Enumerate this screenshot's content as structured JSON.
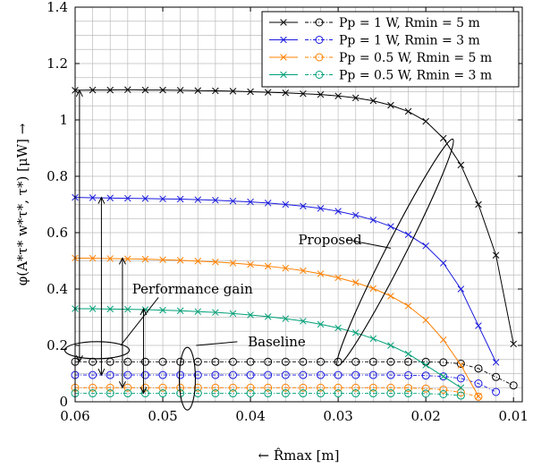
{
  "chart_data": {
    "type": "line",
    "xlabel": "← R̂max [m]",
    "ylabel": "φ(A*τ* w*τ*, τ*) [μW] →",
    "xlim": [
      0.06,
      0.009
    ],
    "ylim": [
      0,
      1.4
    ],
    "x_reversed": true,
    "grid": true,
    "xticks": [
      "0.06",
      "0.05",
      "0.04",
      "0.03",
      "0.02",
      "0.01"
    ],
    "yticks": [
      "0",
      "0.2",
      "0.4",
      "0.6",
      "0.8",
      "1",
      "1.2",
      "1.4"
    ],
    "legend_position": "top-right",
    "series": [
      {
        "name": "Pp = 1 W, Rmin = 5 m",
        "legend_text": "Pp = 1 W, Rmin = 5 m",
        "color": "#000000",
        "proposed": [
          [
            0.06,
            1.105
          ],
          [
            0.058,
            1.106
          ],
          [
            0.056,
            1.106
          ],
          [
            0.054,
            1.107
          ],
          [
            0.052,
            1.106
          ],
          [
            0.05,
            1.106
          ],
          [
            0.048,
            1.105
          ],
          [
            0.046,
            1.104
          ],
          [
            0.044,
            1.103
          ],
          [
            0.042,
            1.102
          ],
          [
            0.04,
            1.1
          ],
          [
            0.038,
            1.098
          ],
          [
            0.036,
            1.096
          ],
          [
            0.034,
            1.093
          ],
          [
            0.032,
            1.09
          ],
          [
            0.03,
            1.085
          ],
          [
            0.028,
            1.078
          ],
          [
            0.026,
            1.068
          ],
          [
            0.024,
            1.052
          ],
          [
            0.022,
            1.03
          ],
          [
            0.02,
            0.995
          ],
          [
            0.018,
            0.935
          ],
          [
            0.016,
            0.84
          ],
          [
            0.014,
            0.7
          ],
          [
            0.012,
            0.52
          ],
          [
            0.01,
            0.205
          ]
        ],
        "baseline": [
          [
            0.06,
            0.142
          ],
          [
            0.058,
            0.142
          ],
          [
            0.056,
            0.142
          ],
          [
            0.054,
            0.142
          ],
          [
            0.052,
            0.142
          ],
          [
            0.05,
            0.142
          ],
          [
            0.048,
            0.142
          ],
          [
            0.046,
            0.142
          ],
          [
            0.044,
            0.142
          ],
          [
            0.042,
            0.142
          ],
          [
            0.04,
            0.142
          ],
          [
            0.038,
            0.142
          ],
          [
            0.036,
            0.142
          ],
          [
            0.034,
            0.142
          ],
          [
            0.032,
            0.142
          ],
          [
            0.03,
            0.142
          ],
          [
            0.028,
            0.142
          ],
          [
            0.026,
            0.142
          ],
          [
            0.024,
            0.142
          ],
          [
            0.022,
            0.142
          ],
          [
            0.02,
            0.142
          ],
          [
            0.018,
            0.14
          ],
          [
            0.016,
            0.135
          ],
          [
            0.014,
            0.118
          ],
          [
            0.012,
            0.088
          ],
          [
            0.01,
            0.058
          ]
        ]
      },
      {
        "name": "Pp = 1 W, Rmin = 3 m",
        "legend_text": "Pp = 1 W, Rmin = 3 m",
        "color": "#1a1adf",
        "proposed": [
          [
            0.06,
            0.725
          ],
          [
            0.058,
            0.724
          ],
          [
            0.056,
            0.723
          ],
          [
            0.054,
            0.722
          ],
          [
            0.052,
            0.721
          ],
          [
            0.05,
            0.72
          ],
          [
            0.048,
            0.719
          ],
          [
            0.046,
            0.717
          ],
          [
            0.044,
            0.715
          ],
          [
            0.042,
            0.712
          ],
          [
            0.04,
            0.709
          ],
          [
            0.038,
            0.705
          ],
          [
            0.036,
            0.7
          ],
          [
            0.034,
            0.694
          ],
          [
            0.032,
            0.686
          ],
          [
            0.03,
            0.676
          ],
          [
            0.028,
            0.662
          ],
          [
            0.026,
            0.645
          ],
          [
            0.024,
            0.622
          ],
          [
            0.022,
            0.593
          ],
          [
            0.02,
            0.553
          ],
          [
            0.018,
            0.492
          ],
          [
            0.016,
            0.4
          ],
          [
            0.014,
            0.27
          ],
          [
            0.012,
            0.14
          ]
        ],
        "baseline": [
          [
            0.06,
            0.095
          ],
          [
            0.058,
            0.095
          ],
          [
            0.056,
            0.095
          ],
          [
            0.054,
            0.095
          ],
          [
            0.052,
            0.095
          ],
          [
            0.05,
            0.095
          ],
          [
            0.048,
            0.095
          ],
          [
            0.046,
            0.095
          ],
          [
            0.044,
            0.095
          ],
          [
            0.042,
            0.095
          ],
          [
            0.04,
            0.095
          ],
          [
            0.038,
            0.095
          ],
          [
            0.036,
            0.095
          ],
          [
            0.034,
            0.095
          ],
          [
            0.032,
            0.095
          ],
          [
            0.03,
            0.095
          ],
          [
            0.028,
            0.095
          ],
          [
            0.026,
            0.095
          ],
          [
            0.024,
            0.095
          ],
          [
            0.022,
            0.094
          ],
          [
            0.02,
            0.093
          ],
          [
            0.018,
            0.09
          ],
          [
            0.016,
            0.083
          ],
          [
            0.014,
            0.065
          ],
          [
            0.012,
            0.035
          ]
        ]
      },
      {
        "name": "Pp = 0.5 W, Rmin = 5 m",
        "legend_text": "Pp = 0.5 W, Rmin = 5 m",
        "color": "#ff8000",
        "proposed": [
          [
            0.06,
            0.51
          ],
          [
            0.058,
            0.509
          ],
          [
            0.056,
            0.508
          ],
          [
            0.054,
            0.507
          ],
          [
            0.052,
            0.506
          ],
          [
            0.05,
            0.504
          ],
          [
            0.048,
            0.502
          ],
          [
            0.046,
            0.499
          ],
          [
            0.044,
            0.496
          ],
          [
            0.042,
            0.492
          ],
          [
            0.04,
            0.487
          ],
          [
            0.038,
            0.481
          ],
          [
            0.036,
            0.474
          ],
          [
            0.034,
            0.465
          ],
          [
            0.032,
            0.454
          ],
          [
            0.03,
            0.44
          ],
          [
            0.028,
            0.423
          ],
          [
            0.026,
            0.402
          ],
          [
            0.024,
            0.375
          ],
          [
            0.022,
            0.34
          ],
          [
            0.02,
            0.29
          ],
          [
            0.018,
            0.22
          ],
          [
            0.016,
            0.13
          ],
          [
            0.014,
            0.02
          ]
        ],
        "baseline": [
          [
            0.06,
            0.05
          ],
          [
            0.058,
            0.05
          ],
          [
            0.056,
            0.05
          ],
          [
            0.054,
            0.05
          ],
          [
            0.052,
            0.05
          ],
          [
            0.05,
            0.05
          ],
          [
            0.048,
            0.05
          ],
          [
            0.046,
            0.05
          ],
          [
            0.044,
            0.05
          ],
          [
            0.042,
            0.05
          ],
          [
            0.04,
            0.05
          ],
          [
            0.038,
            0.05
          ],
          [
            0.036,
            0.05
          ],
          [
            0.034,
            0.05
          ],
          [
            0.032,
            0.05
          ],
          [
            0.03,
            0.05
          ],
          [
            0.028,
            0.05
          ],
          [
            0.026,
            0.05
          ],
          [
            0.024,
            0.05
          ],
          [
            0.022,
            0.049
          ],
          [
            0.02,
            0.047
          ],
          [
            0.018,
            0.043
          ],
          [
            0.016,
            0.033
          ],
          [
            0.014,
            0.018
          ]
        ]
      },
      {
        "name": "Pp = 0.5 W, Rmin = 3 m",
        "legend_text": "Pp = 0.5 W, Rmin = 3 m",
        "color": "#00a078",
        "proposed": [
          [
            0.06,
            0.33
          ],
          [
            0.058,
            0.33
          ],
          [
            0.056,
            0.329
          ],
          [
            0.054,
            0.328
          ],
          [
            0.052,
            0.327
          ],
          [
            0.05,
            0.325
          ],
          [
            0.048,
            0.323
          ],
          [
            0.046,
            0.32
          ],
          [
            0.044,
            0.317
          ],
          [
            0.042,
            0.313
          ],
          [
            0.04,
            0.308
          ],
          [
            0.038,
            0.302
          ],
          [
            0.036,
            0.295
          ],
          [
            0.034,
            0.286
          ],
          [
            0.032,
            0.275
          ],
          [
            0.03,
            0.262
          ],
          [
            0.028,
            0.245
          ],
          [
            0.026,
            0.224
          ],
          [
            0.024,
            0.2
          ],
          [
            0.022,
            0.17
          ],
          [
            0.02,
            0.13
          ],
          [
            0.018,
            0.09
          ],
          [
            0.016,
            0.05
          ]
        ],
        "baseline": [
          [
            0.06,
            0.03
          ],
          [
            0.058,
            0.03
          ],
          [
            0.056,
            0.03
          ],
          [
            0.054,
            0.03
          ],
          [
            0.052,
            0.03
          ],
          [
            0.05,
            0.03
          ],
          [
            0.048,
            0.03
          ],
          [
            0.046,
            0.03
          ],
          [
            0.044,
            0.03
          ],
          [
            0.042,
            0.03
          ],
          [
            0.04,
            0.03
          ],
          [
            0.038,
            0.03
          ],
          [
            0.036,
            0.03
          ],
          [
            0.034,
            0.03
          ],
          [
            0.032,
            0.03
          ],
          [
            0.03,
            0.03
          ],
          [
            0.028,
            0.03
          ],
          [
            0.026,
            0.03
          ],
          [
            0.024,
            0.03
          ],
          [
            0.022,
            0.03
          ],
          [
            0.02,
            0.029
          ],
          [
            0.018,
            0.027
          ],
          [
            0.016,
            0.022
          ]
        ]
      }
    ],
    "annotations": {
      "proposed": "Proposed",
      "baseline": "Baseline",
      "performance_gain": "Performance gain"
    }
  }
}
